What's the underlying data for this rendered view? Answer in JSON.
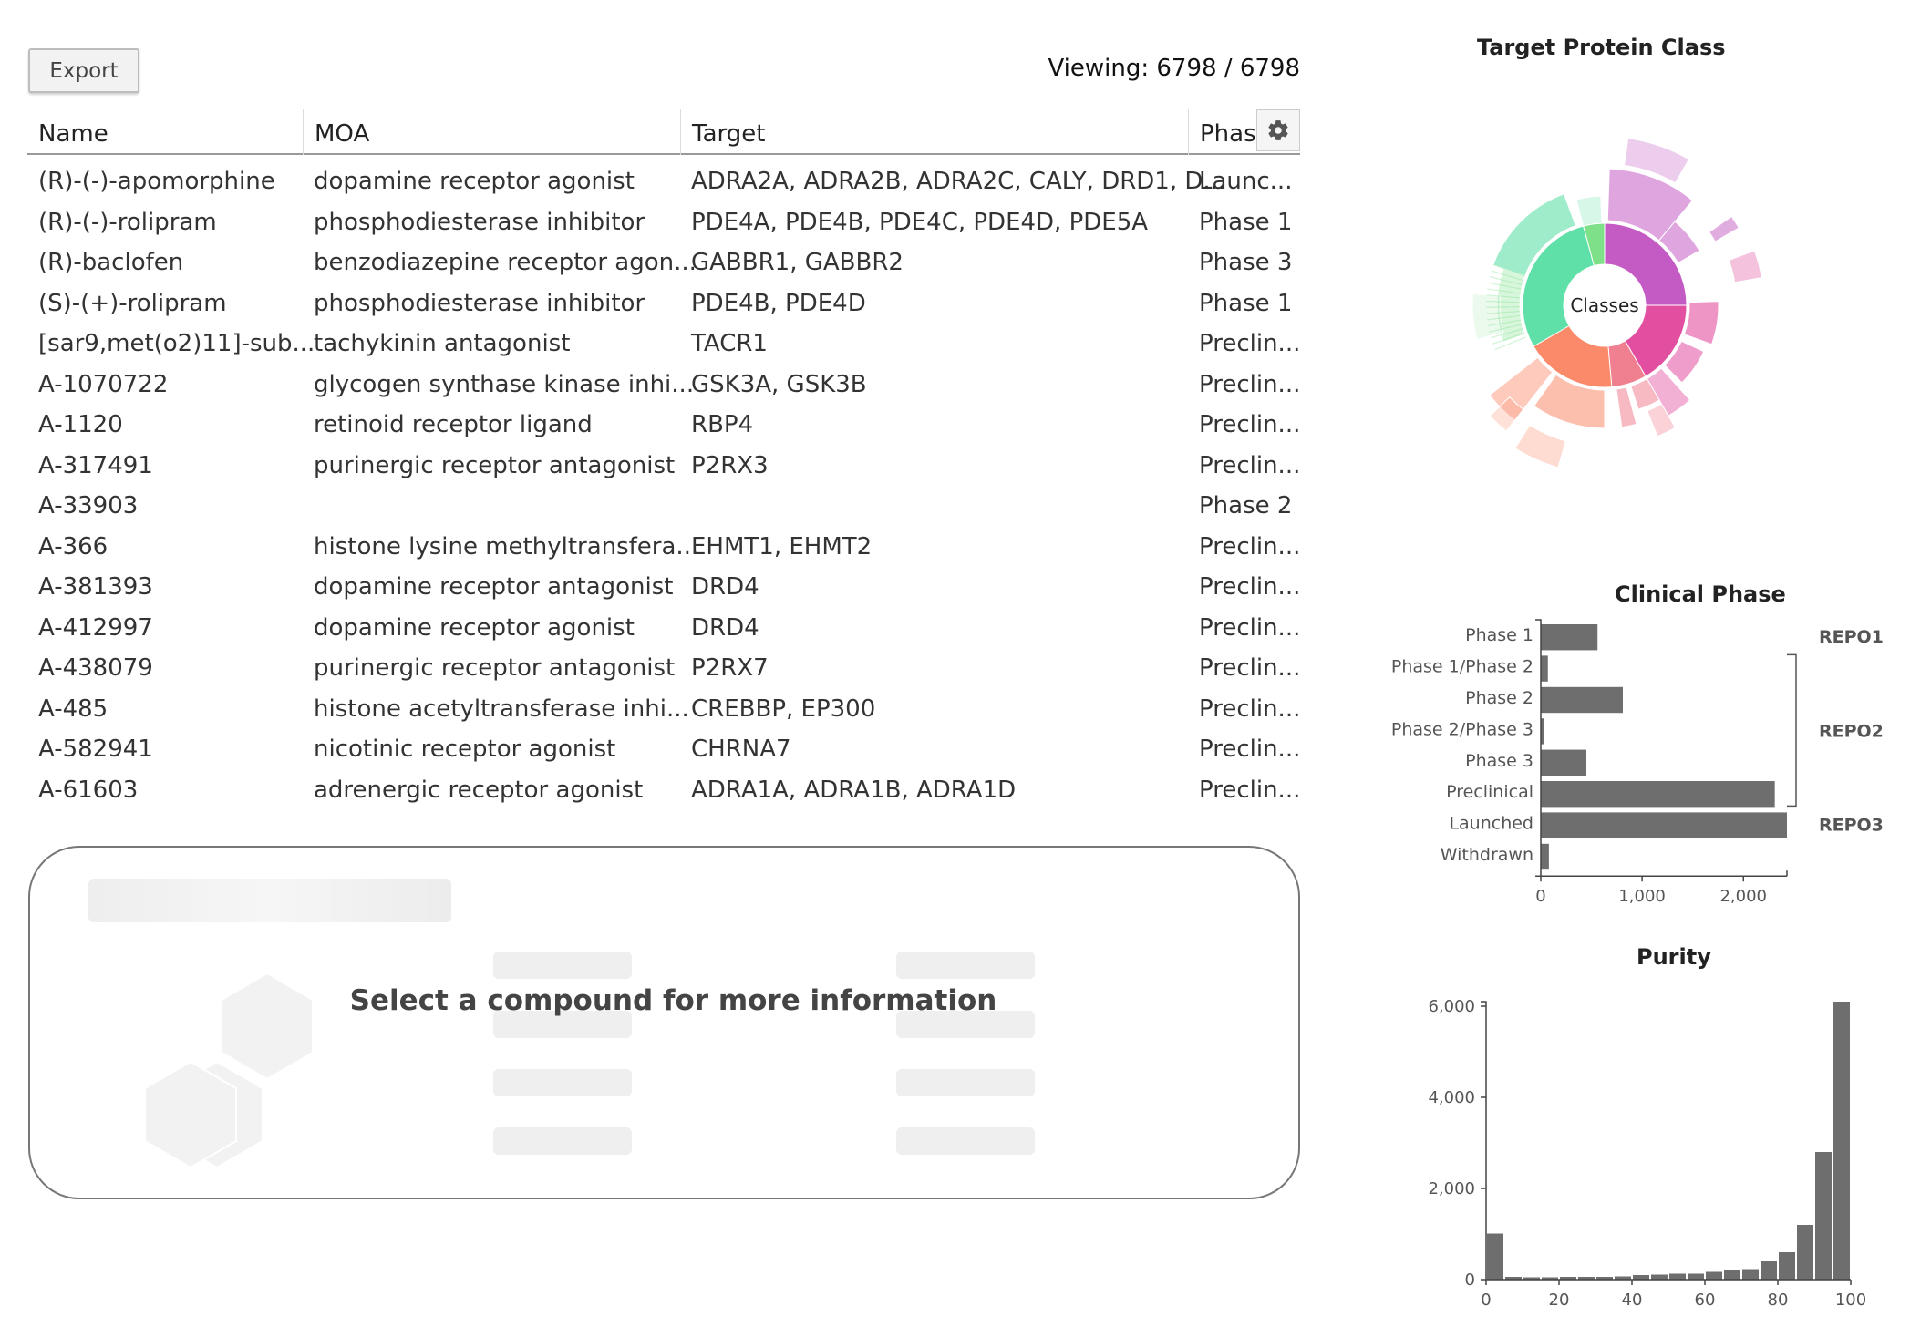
{
  "toolbar": {
    "export_label": "Export",
    "viewing": "Viewing: 6798 / 6798"
  },
  "table": {
    "columns": [
      "Name",
      "MOA",
      "Target",
      "Phase"
    ],
    "settings_icon": "gear-icon",
    "rows": [
      [
        "(R)-(-)-apomorphine",
        "dopamine receptor agonist",
        "ADRA2A, ADRA2B, ADRA2C, CALY, DRD1, D...",
        "Launc..."
      ],
      [
        "(R)-(-)-rolipram",
        "phosphodiesterase inhibitor",
        "PDE4A, PDE4B, PDE4C, PDE4D, PDE5A",
        "Phase 1"
      ],
      [
        "(R)-baclofen",
        "benzodiazepine receptor agon...",
        "GABBR1, GABBR2",
        "Phase 3"
      ],
      [
        "(S)-(+)-rolipram",
        "phosphodiesterase inhibitor",
        "PDE4B, PDE4D",
        "Phase 1"
      ],
      [
        "[sar9,met(o2)11]-sub...",
        "tachykinin antagonist",
        "TACR1",
        "Preclin..."
      ],
      [
        "A-1070722",
        "glycogen synthase kinase inhi...",
        "GSK3A, GSK3B",
        "Preclin..."
      ],
      [
        "A-1120",
        "retinoid receptor ligand",
        "RBP4",
        "Preclin..."
      ],
      [
        "A-317491",
        "purinergic receptor antagonist",
        "P2RX3",
        "Preclin..."
      ],
      [
        "A-33903",
        "",
        "",
        "Phase 2"
      ],
      [
        "A-366",
        "histone lysine methyltransfera...",
        "EHMT1, EHMT2",
        "Preclin..."
      ],
      [
        "A-381393",
        "dopamine receptor antagonist",
        "DRD4",
        "Preclin..."
      ],
      [
        "A-412997",
        "dopamine receptor agonist",
        "DRD4",
        "Preclin..."
      ],
      [
        "A-438079",
        "purinergic receptor antagonist",
        "P2RX7",
        "Preclin..."
      ],
      [
        "A-485",
        "histone acetyltransferase inhi...",
        "CREBBP, EP300",
        "Preclin..."
      ],
      [
        "A-582941",
        "nicotinic receptor agonist",
        "CHRNA7",
        "Preclin..."
      ],
      [
        "A-61603",
        "adrenergic receptor agonist",
        "ADRA1A, ADRA1B, ADRA1D",
        "Preclin..."
      ]
    ]
  },
  "info_panel": {
    "message": "Select a compound for more information"
  },
  "sunburst": {
    "title": "Target Protein Class",
    "center_label": "Classes",
    "colors": [
      "#c45bc4",
      "#e24fa0",
      "#f07f8f",
      "#fb8a6a",
      "#5fe0a8",
      "#7fe08a"
    ]
  },
  "clinical_phase": {
    "title": "Clinical Phase",
    "chart_data": {
      "type": "bar",
      "orientation": "horizontal",
      "categories": [
        "Phase 1",
        "Phase 1/Phase 2",
        "Phase 2",
        "Phase 2/Phase 3",
        "Phase 3",
        "Preclinical",
        "Launched",
        "Withdrawn"
      ],
      "values": [
        560,
        70,
        810,
        30,
        450,
        2310,
        2430,
        80
      ],
      "xlim": [
        0,
        2430
      ],
      "xticks": [
        0,
        1000,
        2000
      ],
      "xtick_labels": [
        "0",
        "1,000",
        "2,000"
      ],
      "groups": [
        {
          "name": "REPO1",
          "categories": [
            "Phase 1"
          ]
        },
        {
          "name": "REPO2",
          "categories": [
            "Phase 1/Phase 2",
            "Phase 2",
            "Phase 2/Phase 3",
            "Phase 3",
            "Preclinical"
          ]
        },
        {
          "name": "REPO3",
          "categories": [
            "Launched"
          ]
        }
      ],
      "bar_color": "#6e6e6e"
    }
  },
  "purity": {
    "title": "Purity",
    "chart_data": {
      "type": "bar",
      "bins_start": [
        0,
        5,
        10,
        15,
        20,
        25,
        30,
        35,
        40,
        45,
        50,
        55,
        60,
        65,
        70,
        75,
        80,
        85,
        90,
        95
      ],
      "values": [
        1010,
        60,
        50,
        50,
        60,
        60,
        60,
        70,
        100,
        110,
        130,
        130,
        170,
        200,
        230,
        400,
        600,
        1200,
        2800,
        6100
      ],
      "xlim": [
        0,
        100
      ],
      "ylim": [
        0,
        6000
      ],
      "xticks": [
        0,
        20,
        40,
        60,
        80,
        100
      ],
      "yticks": [
        0,
        2000,
        4000,
        6000
      ],
      "ytick_labels": [
        "0",
        "2,000",
        "4,000",
        "6,000"
      ],
      "bar_color": "#6e6e6e"
    }
  }
}
